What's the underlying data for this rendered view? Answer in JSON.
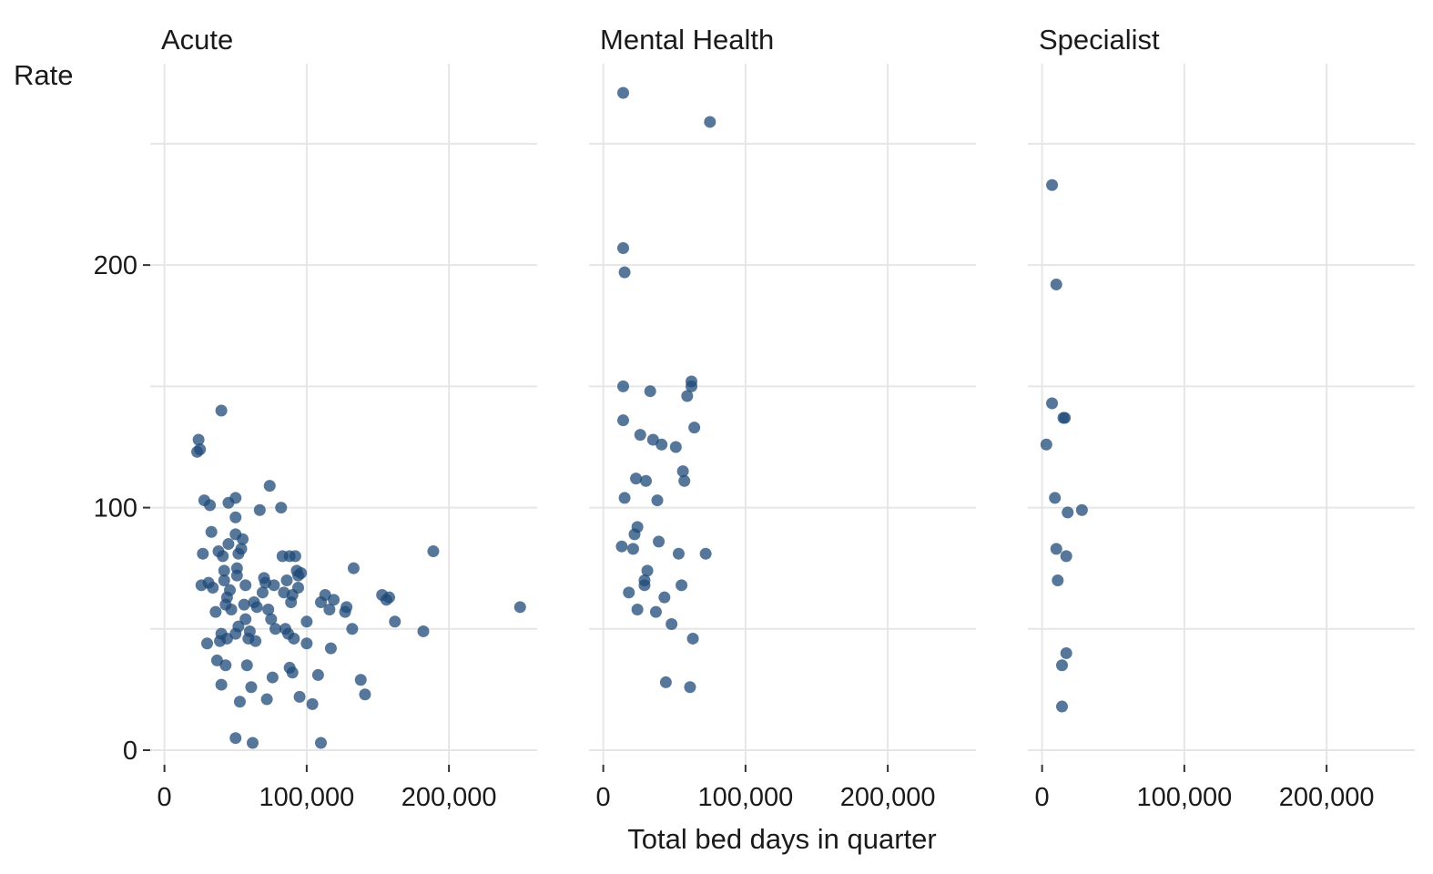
{
  "chart_data": {
    "type": "scatter",
    "xlabel": "Total bed days in quarter",
    "ylabel": "Rate",
    "xlim": [
      -10000,
      262000
    ],
    "ylim": [
      -6,
      283
    ],
    "x_ticks": [
      0,
      100000,
      200000
    ],
    "x_tick_labels": [
      "0",
      "100,000",
      "200,000"
    ],
    "y_ticks": [
      0,
      100,
      200
    ],
    "y_tick_labels": [
      "0",
      "100",
      "200"
    ],
    "grid": true,
    "legend": "none",
    "point_color": "#1f4a78",
    "facets": [
      {
        "name": "Acute",
        "points": [
          [
            23000,
            123
          ],
          [
            24000,
            128
          ],
          [
            25000,
            124
          ],
          [
            26000,
            68
          ],
          [
            27000,
            81
          ],
          [
            28000,
            103
          ],
          [
            30000,
            44
          ],
          [
            31000,
            69
          ],
          [
            32000,
            101
          ],
          [
            33000,
            90
          ],
          [
            34000,
            67
          ],
          [
            36000,
            57
          ],
          [
            37000,
            37
          ],
          [
            38000,
            82
          ],
          [
            39000,
            45
          ],
          [
            40000,
            140
          ],
          [
            40000,
            27
          ],
          [
            40000,
            48
          ],
          [
            41000,
            80
          ],
          [
            42000,
            74
          ],
          [
            42000,
            70
          ],
          [
            43000,
            35
          ],
          [
            43000,
            60
          ],
          [
            44000,
            63
          ],
          [
            44000,
            46
          ],
          [
            45000,
            102
          ],
          [
            45000,
            85
          ],
          [
            46000,
            66
          ],
          [
            47000,
            58
          ],
          [
            50000,
            89
          ],
          [
            50000,
            104
          ],
          [
            50000,
            96
          ],
          [
            50000,
            48
          ],
          [
            50000,
            5
          ],
          [
            51000,
            75
          ],
          [
            51000,
            72
          ],
          [
            52000,
            81
          ],
          [
            52000,
            51
          ],
          [
            53000,
            20
          ],
          [
            54000,
            83
          ],
          [
            55000,
            87
          ],
          [
            56000,
            60
          ],
          [
            57000,
            68
          ],
          [
            57000,
            54
          ],
          [
            58000,
            35
          ],
          [
            59000,
            46
          ],
          [
            60000,
            49
          ],
          [
            61000,
            26
          ],
          [
            62000,
            3
          ],
          [
            63000,
            61
          ],
          [
            64000,
            45
          ],
          [
            65000,
            59
          ],
          [
            67000,
            99
          ],
          [
            69000,
            65
          ],
          [
            70000,
            71
          ],
          [
            71000,
            69
          ],
          [
            72000,
            21
          ],
          [
            73000,
            58
          ],
          [
            74000,
            109
          ],
          [
            75000,
            54
          ],
          [
            76000,
            30
          ],
          [
            77000,
            68
          ],
          [
            78000,
            50
          ],
          [
            82000,
            100
          ],
          [
            83000,
            80
          ],
          [
            84000,
            65
          ],
          [
            85000,
            50
          ],
          [
            86000,
            70
          ],
          [
            87000,
            48
          ],
          [
            88000,
            34
          ],
          [
            88000,
            80
          ],
          [
            89000,
            61
          ],
          [
            90000,
            64
          ],
          [
            90000,
            32
          ],
          [
            91000,
            46
          ],
          [
            92000,
            80
          ],
          [
            93000,
            74
          ],
          [
            94000,
            67
          ],
          [
            94000,
            72
          ],
          [
            95000,
            22
          ],
          [
            96000,
            73
          ],
          [
            100000,
            53
          ],
          [
            100000,
            44
          ],
          [
            104000,
            19
          ],
          [
            108000,
            31
          ],
          [
            110000,
            61
          ],
          [
            110000,
            3
          ],
          [
            113000,
            64
          ],
          [
            116000,
            58
          ],
          [
            117000,
            42
          ],
          [
            119000,
            62
          ],
          [
            127000,
            57
          ],
          [
            128000,
            59
          ],
          [
            132000,
            50
          ],
          [
            133000,
            75
          ],
          [
            138000,
            29
          ],
          [
            141000,
            23
          ],
          [
            153000,
            64
          ],
          [
            156000,
            62
          ],
          [
            158000,
            63
          ],
          [
            162000,
            53
          ],
          [
            182000,
            49
          ],
          [
            189000,
            82
          ],
          [
            250000,
            59
          ]
        ]
      },
      {
        "name": "Mental Health",
        "points": [
          [
            14000,
            271
          ],
          [
            14000,
            207
          ],
          [
            15000,
            197
          ],
          [
            14000,
            150
          ],
          [
            14000,
            136
          ],
          [
            15000,
            104
          ],
          [
            13000,
            84
          ],
          [
            18000,
            65
          ],
          [
            21000,
            83
          ],
          [
            22000,
            89
          ],
          [
            23000,
            112
          ],
          [
            24000,
            92
          ],
          [
            24000,
            58
          ],
          [
            26000,
            130
          ],
          [
            29000,
            70
          ],
          [
            29000,
            68
          ],
          [
            30000,
            111
          ],
          [
            31000,
            74
          ],
          [
            33000,
            148
          ],
          [
            35000,
            128
          ],
          [
            37000,
            57
          ],
          [
            38000,
            103
          ],
          [
            39000,
            86
          ],
          [
            41000,
            126
          ],
          [
            43000,
            63
          ],
          [
            44000,
            28
          ],
          [
            48000,
            52
          ],
          [
            51000,
            125
          ],
          [
            53000,
            81
          ],
          [
            55000,
            68
          ],
          [
            56000,
            115
          ],
          [
            57000,
            111
          ],
          [
            59000,
            146
          ],
          [
            62000,
            152
          ],
          [
            62000,
            150
          ],
          [
            61000,
            26
          ],
          [
            63000,
            46
          ],
          [
            64000,
            133
          ],
          [
            72000,
            81
          ],
          [
            75000,
            259
          ]
        ]
      },
      {
        "name": "Specialist",
        "points": [
          [
            7000,
            233
          ],
          [
            10000,
            192
          ],
          [
            7000,
            143
          ],
          [
            15000,
            137
          ],
          [
            16000,
            137
          ],
          [
            3000,
            126
          ],
          [
            9000,
            104
          ],
          [
            18000,
            98
          ],
          [
            28000,
            99
          ],
          [
            10000,
            83
          ],
          [
            17000,
            80
          ],
          [
            11000,
            70
          ],
          [
            17000,
            40
          ],
          [
            14000,
            35
          ],
          [
            14000,
            18
          ]
        ]
      }
    ]
  }
}
